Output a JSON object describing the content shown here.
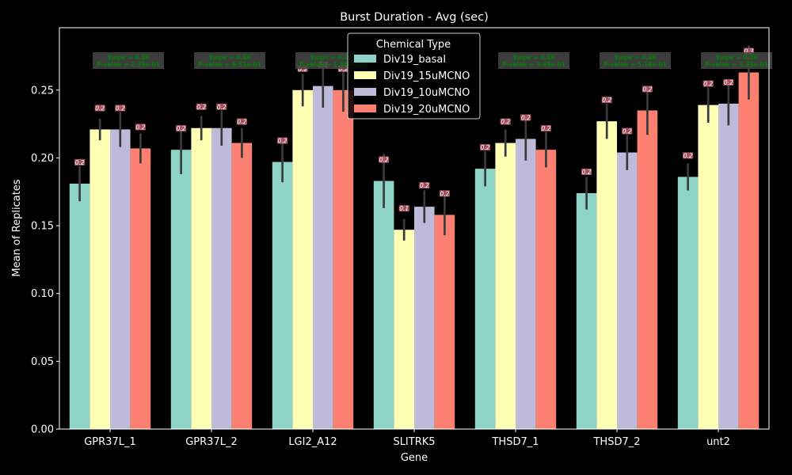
{
  "chart_data": {
    "type": "bar",
    "title": "Burst Duration - Avg (sec)",
    "xlabel": "Gene",
    "ylabel": "Mean of Replicates",
    "ylim": [
      0,
      0.296
    ],
    "yticks": [
      "0.00",
      "0.05",
      "0.10",
      "0.15",
      "0.20",
      "0.25"
    ],
    "grid": false,
    "legend_title": "Chemical Type",
    "legend_position": "top-center",
    "categories": [
      "GPR37L_1",
      "GPR37L_2",
      "LGI2_A12",
      "SLITRK5",
      "THSD7_1",
      "THSD7_2",
      "unt2"
    ],
    "series": [
      {
        "name": "Div19_basal",
        "color": "#8dd3c7",
        "values": [
          0.181,
          0.206,
          0.197,
          0.183,
          0.192,
          0.174,
          0.186
        ],
        "errors": [
          0.013,
          0.018,
          0.015,
          0.02,
          0.013,
          0.012,
          0.01
        ],
        "labels": [
          "0.2",
          "0.2",
          "0.2",
          "0.2",
          "0.2",
          "0.2",
          "0.2"
        ]
      },
      {
        "name": "Div19_15uMCNO",
        "color": "#ffffb3",
        "values": [
          0.221,
          0.222,
          0.25,
          0.147,
          0.211,
          0.227,
          0.239
        ],
        "errors": [
          0.008,
          0.009,
          0.012,
          0.008,
          0.01,
          0.013,
          0.013
        ],
        "labels": [
          "0.2",
          "0.2",
          "0.2",
          "0.1",
          "0.2",
          "0.2",
          "0.2"
        ]
      },
      {
        "name": "Div19_10uMCNO",
        "color": "#bebada",
        "values": [
          0.221,
          0.222,
          0.253,
          0.164,
          0.214,
          0.204,
          0.24
        ],
        "errors": [
          0.013,
          0.013,
          0.016,
          0.012,
          0.016,
          0.013,
          0.016
        ],
        "labels": [
          "0.2",
          "0.2",
          "0.3",
          "0.2",
          "0.2",
          "0.2",
          "0.2"
        ]
      },
      {
        "name": "Div19_20uMCNO",
        "color": "#fb8072",
        "values": [
          0.207,
          0.211,
          0.25,
          0.158,
          0.206,
          0.235,
          0.263
        ],
        "errors": [
          0.011,
          0.011,
          0.016,
          0.015,
          0.013,
          0.018,
          0.02
        ],
        "labels": [
          "0.2",
          "0.2",
          "0.2",
          "0.2",
          "0.2",
          "0.2",
          "0.3"
        ]
      }
    ],
    "annotations": [
      {
        "line1": "Slope = 0.00",
        "line2": "P-value = 2.39e-01"
      },
      {
        "line1": "Slope = 0.00",
        "line2": "P-value = 6.51e-01"
      },
      {
        "line1": "Slope = 0.00",
        "line2": "P-value = 1.56e-01"
      },
      {
        "line1": "",
        "line2": ""
      },
      {
        "line1": "Slope = 0.00",
        "line2": "P-value = 3.69e-01"
      },
      {
        "line1": "Slope = 0.00",
        "line2": "P-value = 5.18e-01"
      },
      {
        "line1": "Slope = 0.00",
        "line2": "P-value = 3.33e-01"
      }
    ],
    "colors": {
      "background": "#000000",
      "axes": "#ffffff",
      "text": "#ffffff",
      "errorbar": "#3a3a3a",
      "annotation_text": "#008000",
      "annotation_box": "#444444",
      "bar_label_text": "#ffffff",
      "bar_label_box": "#c06070"
    }
  }
}
